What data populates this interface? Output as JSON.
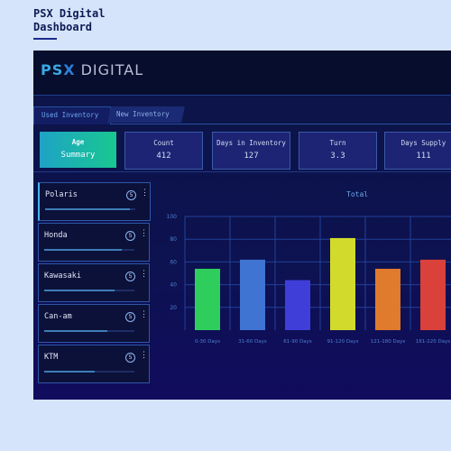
{
  "page": {
    "title_line1": "PSX Digital",
    "title_line2": "Dashboard"
  },
  "app": {
    "logo": {
      "p": "P",
      "s": "S",
      "x": "X",
      "word": "DIGITAL"
    },
    "tabs": [
      {
        "label": "Used Inventory",
        "active": true
      },
      {
        "label": "New Inventory",
        "active": false
      }
    ],
    "stats": [
      {
        "label": "Age",
        "value": "Summary",
        "active": true
      },
      {
        "label": "Count",
        "value": "412"
      },
      {
        "label": "Days in Inventory",
        "value": "127"
      },
      {
        "label": "Turn",
        "value": "3.3"
      },
      {
        "label": "Days Supply",
        "value": "111"
      }
    ],
    "brands": [
      {
        "name": "Polaris",
        "badge": "5",
        "menu": "⋮",
        "progress": 0.94
      },
      {
        "name": "Honda",
        "badge": "5",
        "menu": "⋮",
        "progress": 0.86
      },
      {
        "name": "Kawasaki",
        "badge": "5",
        "menu": "⋮",
        "progress": 0.78
      },
      {
        "name": "Can-am",
        "badge": "5",
        "menu": "⋮",
        "progress": 0.7
      },
      {
        "name": "KTM",
        "badge": "5",
        "menu": "⋮",
        "progress": 0.56
      }
    ]
  },
  "chart_data": {
    "type": "bar",
    "title": "Total",
    "categories": [
      "0-30 Days",
      "31-60 Days",
      "61-90 Days",
      "91-120 Days",
      "121-180 Days",
      "181-220 Days"
    ],
    "values": [
      54,
      62,
      44,
      81,
      54,
      62
    ],
    "colors": [
      "#2fce5c",
      "#3f74d2",
      "#3f3ed9",
      "#d2da2c",
      "#e07a2d",
      "#d9413a"
    ],
    "ylim": [
      0,
      100
    ],
    "yticks": [
      20,
      40,
      60,
      80,
      100
    ],
    "grid": true,
    "grid_color": "#21419a"
  }
}
